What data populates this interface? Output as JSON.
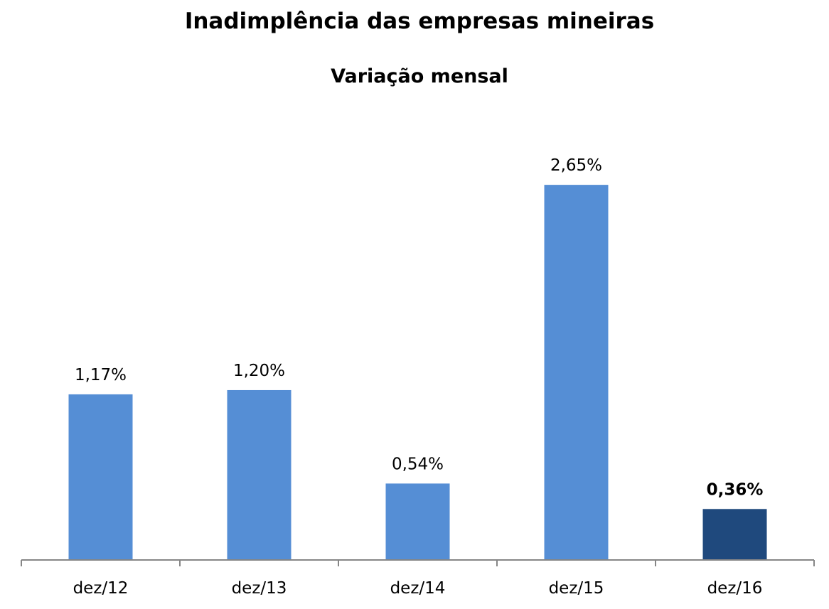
{
  "chart_data": {
    "type": "bar",
    "title": "Inadimplência das empresas mineiras",
    "subtitle": "Variação mensal",
    "categories": [
      "dez/12",
      "dez/13",
      "dez/14",
      "dez/15",
      "dez/16"
    ],
    "values": [
      1.17,
      1.2,
      0.54,
      2.65,
      0.36
    ],
    "data_labels": [
      "1,17%",
      "1,20%",
      "0,54%",
      "2,65%",
      "0,36%"
    ],
    "unit": "%",
    "highlighted_index": 4,
    "ylim": [
      0,
      3.0
    ],
    "grid": false,
    "legend": "none",
    "colors": {
      "bar": "#558ed5",
      "bar_highlight": "#1f497d",
      "axis": "#868686",
      "text": "#000000"
    }
  }
}
